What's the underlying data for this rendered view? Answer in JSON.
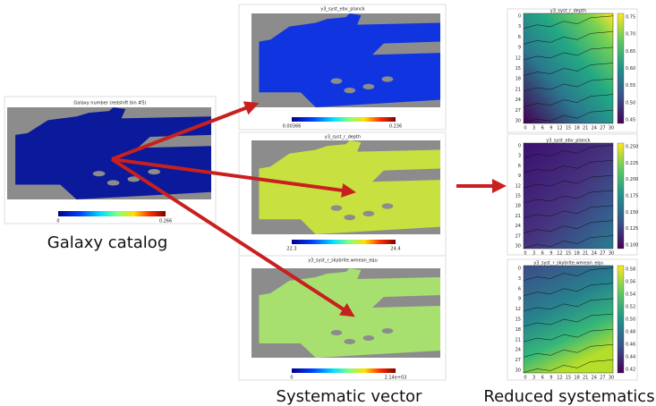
{
  "galaxy": {
    "title": "Galaxy number (redshift bin #5)",
    "colorbar_labels": [
      "0",
      "0.266"
    ],
    "caption": "Galaxy catalog"
  },
  "systematics": {
    "caption": "Systematic vector",
    "maps": [
      {
        "title": "y3_syst_ebv_planck",
        "colorbar_labels": [
          "0.00366",
          "0.236"
        ]
      },
      {
        "title": "y3_syst_r_depth",
        "colorbar_labels": [
          "22.3",
          "24.4"
        ]
      },
      {
        "title": "y3_syst_r_skybrite.wmean_equ",
        "colorbar_labels": [
          "0",
          "2.14e+03"
        ]
      }
    ]
  },
  "reduced": {
    "caption": "Reduced systematics",
    "axis_ticks": [
      "0",
      "3",
      "6",
      "9",
      "12",
      "15",
      "18",
      "21",
      "24",
      "27",
      "30"
    ],
    "panels": [
      {
        "title": "y3_syst_r_depth",
        "colorbar_ticks": [
          "0.75",
          "0.70",
          "0.65",
          "0.60",
          "0.55",
          "0.50",
          "0.45"
        ]
      },
      {
        "title": "y3_syst_ebv_planck",
        "colorbar_ticks": [
          "0.250",
          "0.225",
          "0.200",
          "0.175",
          "0.150",
          "0.125",
          "0.100"
        ]
      },
      {
        "title": "y3_syst_r_skybrite.wmean_equ",
        "colorbar_ticks": [
          "0.58",
          "0.56",
          "0.54",
          "0.52",
          "0.50",
          "0.48",
          "0.46",
          "0.44",
          "0.42"
        ]
      }
    ]
  }
}
